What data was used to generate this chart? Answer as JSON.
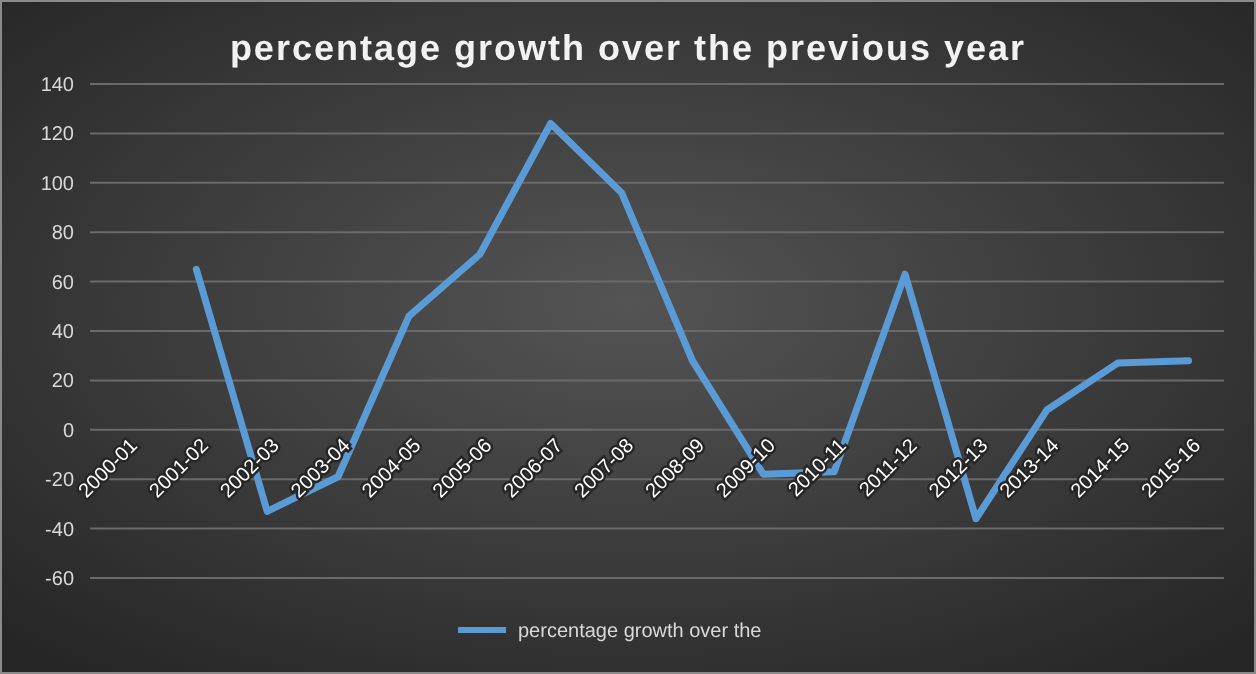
{
  "chart_data": {
    "type": "line",
    "title": "percentage growth over the previous year",
    "categories": [
      "2000-01",
      "2001-02",
      "2002-03",
      "2003-04",
      "2004-05",
      "2005-06",
      "2006-07",
      "2007-08",
      "2008-09",
      "2009-10",
      "2010-11",
      "2011-12",
      "2012-13",
      "2013-14",
      "2014-15",
      "2015-16"
    ],
    "series": [
      {
        "name": "percentage growth over the",
        "color": "#5b9bd5",
        "values": [
          null,
          65,
          -33,
          -19,
          46,
          71,
          124,
          96,
          28,
          -18,
          -17,
          63,
          -36,
          8,
          27,
          28
        ]
      }
    ],
    "ylim": [
      -60,
      140
    ],
    "yticks": [
      -60,
      -40,
      -20,
      0,
      20,
      40,
      60,
      80,
      100,
      120,
      140
    ],
    "grid": "y",
    "legend": "bottom"
  }
}
